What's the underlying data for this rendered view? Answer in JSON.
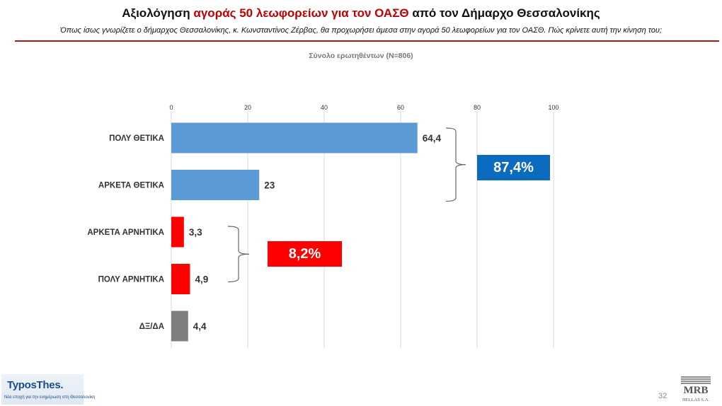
{
  "header": {
    "title_pre": "Αξιολόγηση ",
    "title_highlight": "αγοράς 50 λεωφορείων για τον ΟΑΣΘ",
    "title_post": " από τον Δήμαρχο Θεσσαλονίκης",
    "subtitle": "Όπως ίσως γνωρίζετε ο δήμαρχος Θεσσαλονίκης, κ. Κωνσταντίνος Ζέρβας, θα προχωρήσει άμεσα στην αγορά 50 λεωφορείων για τον ΟΑΣΘ. Πώς κρίνετε αυτή την κίνηση του;",
    "base": "Σύνολο ερωτηθέντων (N=806)"
  },
  "chart_data": {
    "type": "bar",
    "orientation": "horizontal",
    "categories": [
      "ΠΟΛΥ ΘΕΤΙΚΑ",
      "ΑΡΚΕΤΑ ΘΕΤΙΚΑ",
      "ΑΡΚΕΤΑ ΑΡΝΗΤΙΚΑ",
      "ΠΟΛΥ ΑΡΝΗΤΙΚΑ",
      "ΔΞ/ΔΑ"
    ],
    "values": [
      64.4,
      23,
      3.3,
      4.9,
      4.4
    ],
    "value_labels": [
      "64,4",
      "23",
      "3,3",
      "4,9",
      "4,4"
    ],
    "bar_colors": [
      "#5b9bd5",
      "#5b9bd5",
      "#ff0000",
      "#ff0000",
      "#7f7f7f"
    ],
    "xlim": [
      0,
      100
    ],
    "xticks": [
      0,
      20,
      40,
      60,
      80,
      100
    ],
    "axis_position": "top",
    "grid": true,
    "legend": "none",
    "annotations": [
      {
        "text": "87,4%",
        "groups": [
          0,
          1
        ],
        "color": "#0b6bbf"
      },
      {
        "text": "8,2%",
        "groups": [
          2,
          3
        ],
        "color": "#ff0000"
      }
    ]
  },
  "footer": {
    "logo_left_brand": "TyposThes.",
    "logo_left_tagline": "Νέα εποχή για την ενημέρωση στη Θεσσαλονίκη",
    "page_number": "32",
    "logo_right_name": "MRB",
    "logo_right_sub": "HELLAS S.A."
  }
}
